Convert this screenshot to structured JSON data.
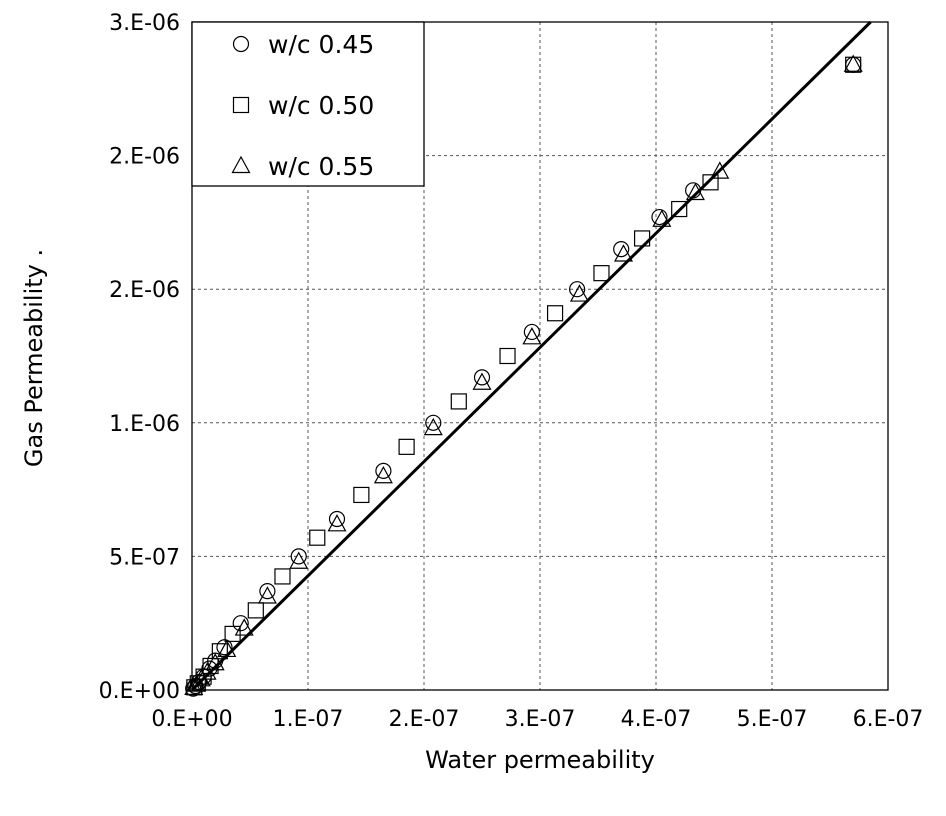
{
  "chart_data": {
    "type": "scatter",
    "title": "",
    "xlabel": "Water permeability",
    "ylabel": "Gas Permeability   .",
    "xlim": [
      0,
      6e-07
    ],
    "ylim": [
      0,
      2.5e-06
    ],
    "x_ticks": [
      0,
      1e-07,
      2e-07,
      3e-07,
      4e-07,
      5e-07,
      6e-07
    ],
    "x_tick_labels": [
      "0.E+00",
      "1.E-07",
      "2.E-07",
      "3.E-07",
      "4.E-07",
      "5.E-07",
      "6.E-07"
    ],
    "y_ticks": [
      0,
      5e-07,
      1e-06,
      1.5e-06,
      2e-06,
      2.5e-06
    ],
    "y_tick_labels": [
      "0.E+00",
      "5.E-07",
      "1.E-06",
      "2.E-06",
      "2.E-06",
      "3.E-06"
    ],
    "grid": true,
    "legend_position": "top-left",
    "series": [
      {
        "name": "w/c 0.45",
        "marker": "circle",
        "points": [
          [
            1e-09,
            5e-09
          ],
          [
            3e-09,
            1.5e-08
          ],
          [
            6e-09,
            3e-08
          ],
          [
            1e-08,
            5e-08
          ],
          [
            1.5e-08,
            8e-08
          ],
          [
            2e-08,
            1.1e-07
          ],
          [
            2.8e-08,
            1.6e-07
          ],
          [
            4.2e-08,
            2.5e-07
          ],
          [
            6.5e-08,
            3.7e-07
          ],
          [
            9.2e-08,
            5e-07
          ],
          [
            1.25e-07,
            6.4e-07
          ],
          [
            1.65e-07,
            8.2e-07
          ],
          [
            2.08e-07,
            1e-06
          ],
          [
            2.5e-07,
            1.17e-06
          ],
          [
            2.93e-07,
            1.34e-06
          ],
          [
            3.32e-07,
            1.5e-06
          ],
          [
            3.7e-07,
            1.65e-06
          ],
          [
            4.03e-07,
            1.77e-06
          ],
          [
            4.32e-07,
            1.87e-06
          ],
          [
            5.7e-07,
            2.34e-06
          ]
        ]
      },
      {
        "name": "w/c 0.50",
        "marker": "square",
        "points": [
          [
            2e-09,
            1e-08
          ],
          [
            5e-09,
            2.5e-08
          ],
          [
            1e-08,
            5e-08
          ],
          [
            1.6e-08,
            9e-08
          ],
          [
            2.4e-08,
            1.45e-07
          ],
          [
            3.5e-08,
            2.1e-07
          ],
          [
            5.5e-08,
            2.98e-07
          ],
          [
            7.8e-08,
            4.25e-07
          ],
          [
            1.08e-07,
            5.7e-07
          ],
          [
            1.46e-07,
            7.3e-07
          ],
          [
            1.85e-07,
            9.1e-07
          ],
          [
            2.3e-07,
            1.08e-06
          ],
          [
            2.72e-07,
            1.25e-06
          ],
          [
            3.13e-07,
            1.41e-06
          ],
          [
            3.53e-07,
            1.56e-06
          ],
          [
            3.88e-07,
            1.69e-06
          ],
          [
            4.2e-07,
            1.8e-06
          ],
          [
            4.47e-07,
            1.9e-06
          ],
          [
            5.7e-07,
            2.34e-06
          ]
        ]
      },
      {
        "name": "w/c 0.55",
        "marker": "triangle",
        "points": [
          [
            1.5e-09,
            8e-09
          ],
          [
            4e-09,
            2e-08
          ],
          [
            8e-09,
            4e-08
          ],
          [
            1.3e-08,
            6.5e-08
          ],
          [
            2e-08,
            1e-07
          ],
          [
            3e-08,
            1.5e-07
          ],
          [
            4.5e-08,
            2.3e-07
          ],
          [
            6.5e-08,
            3.5e-07
          ],
          [
            9.2e-08,
            4.8e-07
          ],
          [
            1.25e-07,
            6.2e-07
          ],
          [
            1.65e-07,
            8e-07
          ],
          [
            2.08e-07,
            9.8e-07
          ],
          [
            2.5e-07,
            1.15e-06
          ],
          [
            2.93e-07,
            1.32e-06
          ],
          [
            3.34e-07,
            1.48e-06
          ],
          [
            3.72e-07,
            1.63e-06
          ],
          [
            4.05e-07,
            1.76e-06
          ],
          [
            4.34e-07,
            1.86e-06
          ],
          [
            4.55e-07,
            1.94e-06
          ],
          [
            5.7e-07,
            2.34e-06
          ]
        ]
      }
    ],
    "fit_line": {
      "points": [
        [
          0,
          0
        ],
        [
          5.85e-07,
          2.5e-06
        ]
      ]
    }
  }
}
